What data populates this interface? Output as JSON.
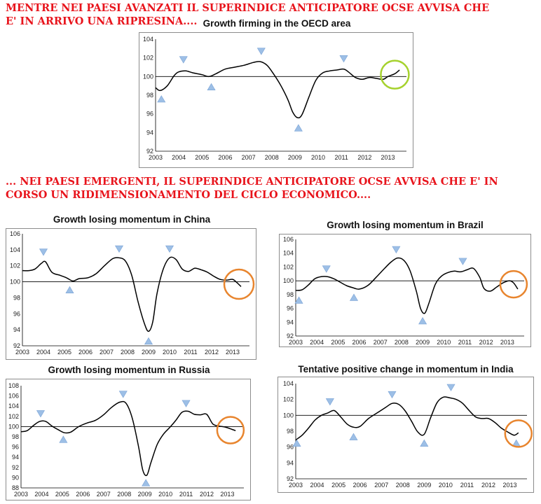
{
  "headlines": {
    "top": "MENTRE NEI PAESI AVANZATI IL SUPERINDICE ANTICIPATORE OCSE AVVISA CHE E' IN ARRIVO UNA RIPRESINA....",
    "middle": "... NEI PAESI EMERGENTI, IL SUPERINDICE ANTICIPATORE OCSE AVVISA CHE E' IN CORSO UN RIDIMENSIONAMENTO DEL CICLO ECONOMICO...."
  },
  "chart_data": [
    {
      "id": "oecd",
      "type": "line",
      "title": "Growth firming in the OECD area",
      "xlabel": "",
      "ylabel": "",
      "xlim": [
        2003,
        2013.8
      ],
      "ylim": [
        92,
        104
      ],
      "yticks": [
        92,
        94,
        96,
        98,
        100,
        102,
        104
      ],
      "xticks": [
        2003,
        2004,
        2005,
        2006,
        2007,
        2008,
        2009,
        2010,
        2011,
        2012,
        2013
      ],
      "reference_line": 100,
      "grid": false,
      "legend": "none",
      "highlight": {
        "color": "#a6d22e",
        "shape": "circle",
        "x": 2013.3,
        "y": 100.2
      },
      "x": [
        2003.0,
        2003.2,
        2003.5,
        2003.8,
        2004.0,
        2004.3,
        2004.6,
        2005.0,
        2005.3,
        2005.6,
        2006.0,
        2006.4,
        2006.8,
        2007.2,
        2007.5,
        2007.8,
        2008.1,
        2008.4,
        2008.7,
        2008.9,
        2009.1,
        2009.3,
        2009.6,
        2009.9,
        2010.2,
        2010.5,
        2010.8,
        2011.1,
        2011.3,
        2011.6,
        2011.9,
        2012.2,
        2012.5,
        2012.8,
        2013.0,
        2013.3,
        2013.5
      ],
      "y": [
        98.8,
        98.5,
        99.0,
        100.1,
        100.5,
        100.6,
        100.4,
        100.2,
        100.0,
        100.3,
        100.8,
        101.0,
        101.2,
        101.5,
        101.6,
        101.2,
        100.2,
        99.0,
        97.5,
        96.2,
        95.6,
        95.9,
        97.8,
        99.6,
        100.4,
        100.6,
        100.7,
        100.8,
        100.5,
        99.9,
        99.7,
        99.9,
        99.8,
        99.7,
        100.0,
        100.3,
        100.7
      ],
      "markers": [
        {
          "x": 2003.25,
          "y": 97.6,
          "dir": "up"
        },
        {
          "x": 2004.2,
          "y": 101.8,
          "dir": "down"
        },
        {
          "x": 2005.4,
          "y": 98.9,
          "dir": "up"
        },
        {
          "x": 2007.55,
          "y": 102.7,
          "dir": "down"
        },
        {
          "x": 2009.15,
          "y": 94.5,
          "dir": "up"
        },
        {
          "x": 2011.1,
          "y": 101.9,
          "dir": "down"
        }
      ]
    },
    {
      "id": "china",
      "type": "line",
      "title": "Growth losing momentum in China",
      "xlabel": "",
      "ylabel": "",
      "xlim": [
        2003,
        2013.8
      ],
      "ylim": [
        92,
        106
      ],
      "yticks": [
        92,
        94,
        96,
        98,
        100,
        102,
        104,
        106
      ],
      "xticks": [
        2003,
        2004,
        2005,
        2006,
        2007,
        2008,
        2009,
        2010,
        2011,
        2012,
        2013
      ],
      "reference_line": 100,
      "grid": false,
      "legend": "none",
      "highlight": {
        "color": "#e8852e",
        "shape": "circle",
        "x": 2013.3,
        "y": 99.7
      },
      "x": [
        2003.0,
        2003.3,
        2003.6,
        2003.9,
        2004.1,
        2004.4,
        2004.8,
        2005.1,
        2005.4,
        2005.7,
        2006.1,
        2006.5,
        2006.9,
        2007.3,
        2007.6,
        2007.9,
        2008.2,
        2008.5,
        2008.8,
        2009.0,
        2009.2,
        2009.4,
        2009.7,
        2010.0,
        2010.3,
        2010.6,
        2010.9,
        2011.2,
        2011.5,
        2011.8,
        2012.1,
        2012.4,
        2012.7,
        2013.0,
        2013.2,
        2013.4
      ],
      "y": [
        101.4,
        101.4,
        101.6,
        102.3,
        102.5,
        101.2,
        100.8,
        100.5,
        100.1,
        100.4,
        100.5,
        101.0,
        102.0,
        102.9,
        103.0,
        102.6,
        100.8,
        97.5,
        94.8,
        93.8,
        95.0,
        98.5,
        101.6,
        103.0,
        102.8,
        101.6,
        101.3,
        101.7,
        101.5,
        101.2,
        100.7,
        100.3,
        100.2,
        100.3,
        99.9,
        99.4
      ],
      "markers": [
        {
          "x": 2004.0,
          "y": 103.7,
          "dir": "down"
        },
        {
          "x": 2005.25,
          "y": 99.0,
          "dir": "up"
        },
        {
          "x": 2007.6,
          "y": 104.1,
          "dir": "down"
        },
        {
          "x": 2009.0,
          "y": 92.6,
          "dir": "up"
        },
        {
          "x": 2010.0,
          "y": 104.1,
          "dir": "down"
        }
      ]
    },
    {
      "id": "brazil",
      "type": "line",
      "title": "Growth losing momentum in Brazil",
      "xlabel": "",
      "ylabel": "",
      "xlim": [
        2003,
        2013.8
      ],
      "ylim": [
        92,
        106
      ],
      "yticks": [
        92,
        94,
        96,
        98,
        100,
        102,
        104,
        106
      ],
      "xticks": [
        2003,
        2004,
        2005,
        2006,
        2007,
        2008,
        2009,
        2010,
        2011,
        2012,
        2013
      ],
      "reference_line": 100,
      "grid": false,
      "legend": "none",
      "highlight": {
        "color": "#e8852e",
        "shape": "circle",
        "x": 2013.3,
        "y": 99.5
      },
      "x": [
        2003.0,
        2003.3,
        2003.6,
        2003.9,
        2004.2,
        2004.5,
        2004.8,
        2005.1,
        2005.4,
        2005.7,
        2006.0,
        2006.4,
        2006.8,
        2007.2,
        2007.5,
        2007.8,
        2008.1,
        2008.4,
        2008.7,
        2008.9,
        2009.1,
        2009.3,
        2009.6,
        2009.9,
        2010.2,
        2010.5,
        2010.8,
        2011.1,
        2011.4,
        2011.7,
        2011.9,
        2012.2,
        2012.5,
        2012.8,
        2013.1,
        2013.3,
        2013.5
      ],
      "y": [
        98.6,
        98.7,
        99.4,
        100.3,
        100.6,
        100.6,
        100.3,
        99.8,
        99.3,
        99.0,
        98.8,
        99.3,
        100.5,
        101.8,
        102.7,
        103.3,
        103.0,
        101.5,
        98.5,
        96.0,
        95.3,
        96.8,
        99.5,
        100.7,
        101.2,
        101.4,
        101.3,
        101.6,
        101.8,
        100.5,
        98.9,
        98.5,
        99.1,
        99.7,
        100.0,
        99.7,
        98.8
      ],
      "markers": [
        {
          "x": 2003.15,
          "y": 97.2,
          "dir": "up"
        },
        {
          "x": 2004.45,
          "y": 101.7,
          "dir": "down"
        },
        {
          "x": 2005.75,
          "y": 97.6,
          "dir": "up"
        },
        {
          "x": 2007.75,
          "y": 104.5,
          "dir": "down"
        },
        {
          "x": 2009.0,
          "y": 94.2,
          "dir": "up"
        },
        {
          "x": 2010.9,
          "y": 102.8,
          "dir": "down"
        }
      ]
    },
    {
      "id": "russia",
      "type": "line",
      "title": "Growth losing momentum in Russia",
      "xlabel": "",
      "ylabel": "",
      "xlim": [
        2003,
        2013.8
      ],
      "ylim": [
        88,
        108
      ],
      "yticks": [
        88,
        90,
        92,
        94,
        96,
        98,
        100,
        102,
        104,
        106,
        108
      ],
      "xticks": [
        2003,
        2004,
        2005,
        2006,
        2007,
        2008,
        2009,
        2010,
        2011,
        2012,
        2013
      ],
      "reference_line": 100,
      "grid": false,
      "legend": "none",
      "highlight": {
        "color": "#e8852e",
        "shape": "circle",
        "x": 2013.15,
        "y": 99.3
      },
      "x": [
        2003.0,
        2003.3,
        2003.6,
        2003.9,
        2004.2,
        2004.5,
        2004.8,
        2005.1,
        2005.4,
        2005.8,
        2006.2,
        2006.6,
        2007.0,
        2007.4,
        2007.8,
        2008.1,
        2008.4,
        2008.7,
        2008.9,
        2009.1,
        2009.3,
        2009.6,
        2009.9,
        2010.2,
        2010.5,
        2010.8,
        2011.1,
        2011.4,
        2011.7,
        2012.0,
        2012.3,
        2012.6,
        2012.9,
        2013.2,
        2013.4
      ],
      "y": [
        99.0,
        99.2,
        100.2,
        101.0,
        101.0,
        100.1,
        99.4,
        98.8,
        98.9,
        100.0,
        100.7,
        101.2,
        102.3,
        103.8,
        104.8,
        104.5,
        101.5,
        96.0,
        91.5,
        90.5,
        93.0,
        96.5,
        98.5,
        99.8,
        101.2,
        102.8,
        103.0,
        102.4,
        102.3,
        102.4,
        100.5,
        100.1,
        99.9,
        99.5,
        99.2
      ],
      "markers": [
        {
          "x": 2003.95,
          "y": 102.5,
          "dir": "down"
        },
        {
          "x": 2005.05,
          "y": 97.5,
          "dir": "up"
        },
        {
          "x": 2007.95,
          "y": 106.3,
          "dir": "down"
        },
        {
          "x": 2009.05,
          "y": 89.0,
          "dir": "up"
        },
        {
          "x": 2011.0,
          "y": 104.5,
          "dir": "down"
        }
      ]
    },
    {
      "id": "india",
      "type": "line",
      "title": "Tentative positive change in momentum in India",
      "xlabel": "",
      "ylabel": "",
      "xlim": [
        2003,
        2013.8
      ],
      "ylim": [
        92,
        104
      ],
      "yticks": [
        92,
        94,
        96,
        98,
        100,
        102,
        104
      ],
      "xticks": [
        2003,
        2004,
        2005,
        2006,
        2007,
        2008,
        2009,
        2010,
        2011,
        2012,
        2013
      ],
      "reference_line": 100,
      "grid": false,
      "legend": "none",
      "highlight": {
        "color": "#e8852e",
        "shape": "circle",
        "x": 2013.4,
        "y": 97.7
      },
      "x": [
        2003.0,
        2003.3,
        2003.6,
        2003.9,
        2004.2,
        2004.5,
        2004.8,
        2005.1,
        2005.4,
        2005.7,
        2006.0,
        2006.4,
        2006.8,
        2007.2,
        2007.5,
        2007.8,
        2008.1,
        2008.4,
        2008.7,
        2009.0,
        2009.3,
        2009.6,
        2009.9,
        2010.2,
        2010.5,
        2010.8,
        2011.1,
        2011.4,
        2011.7,
        2012.0,
        2012.3,
        2012.6,
        2012.9,
        2013.2,
        2013.4
      ],
      "y": [
        96.9,
        97.5,
        98.4,
        99.4,
        100.0,
        100.3,
        100.6,
        99.8,
        98.9,
        98.5,
        98.6,
        99.6,
        100.3,
        101.0,
        101.5,
        101.4,
        100.6,
        99.3,
        97.9,
        97.6,
        99.7,
        101.6,
        102.3,
        102.2,
        102.0,
        101.5,
        100.6,
        99.8,
        99.6,
        99.6,
        99.1,
        98.4,
        97.9,
        97.5,
        97.8
      ],
      "markers": [
        {
          "x": 2003.05,
          "y": 96.5,
          "dir": "up"
        },
        {
          "x": 2004.6,
          "y": 101.7,
          "dir": "down"
        },
        {
          "x": 2005.7,
          "y": 97.3,
          "dir": "up"
        },
        {
          "x": 2007.5,
          "y": 102.6,
          "dir": "down"
        },
        {
          "x": 2009.0,
          "y": 96.5,
          "dir": "up"
        },
        {
          "x": 2010.25,
          "y": 103.5,
          "dir": "down"
        },
        {
          "x": 2013.3,
          "y": 96.5,
          "dir": "up"
        }
      ]
    }
  ]
}
